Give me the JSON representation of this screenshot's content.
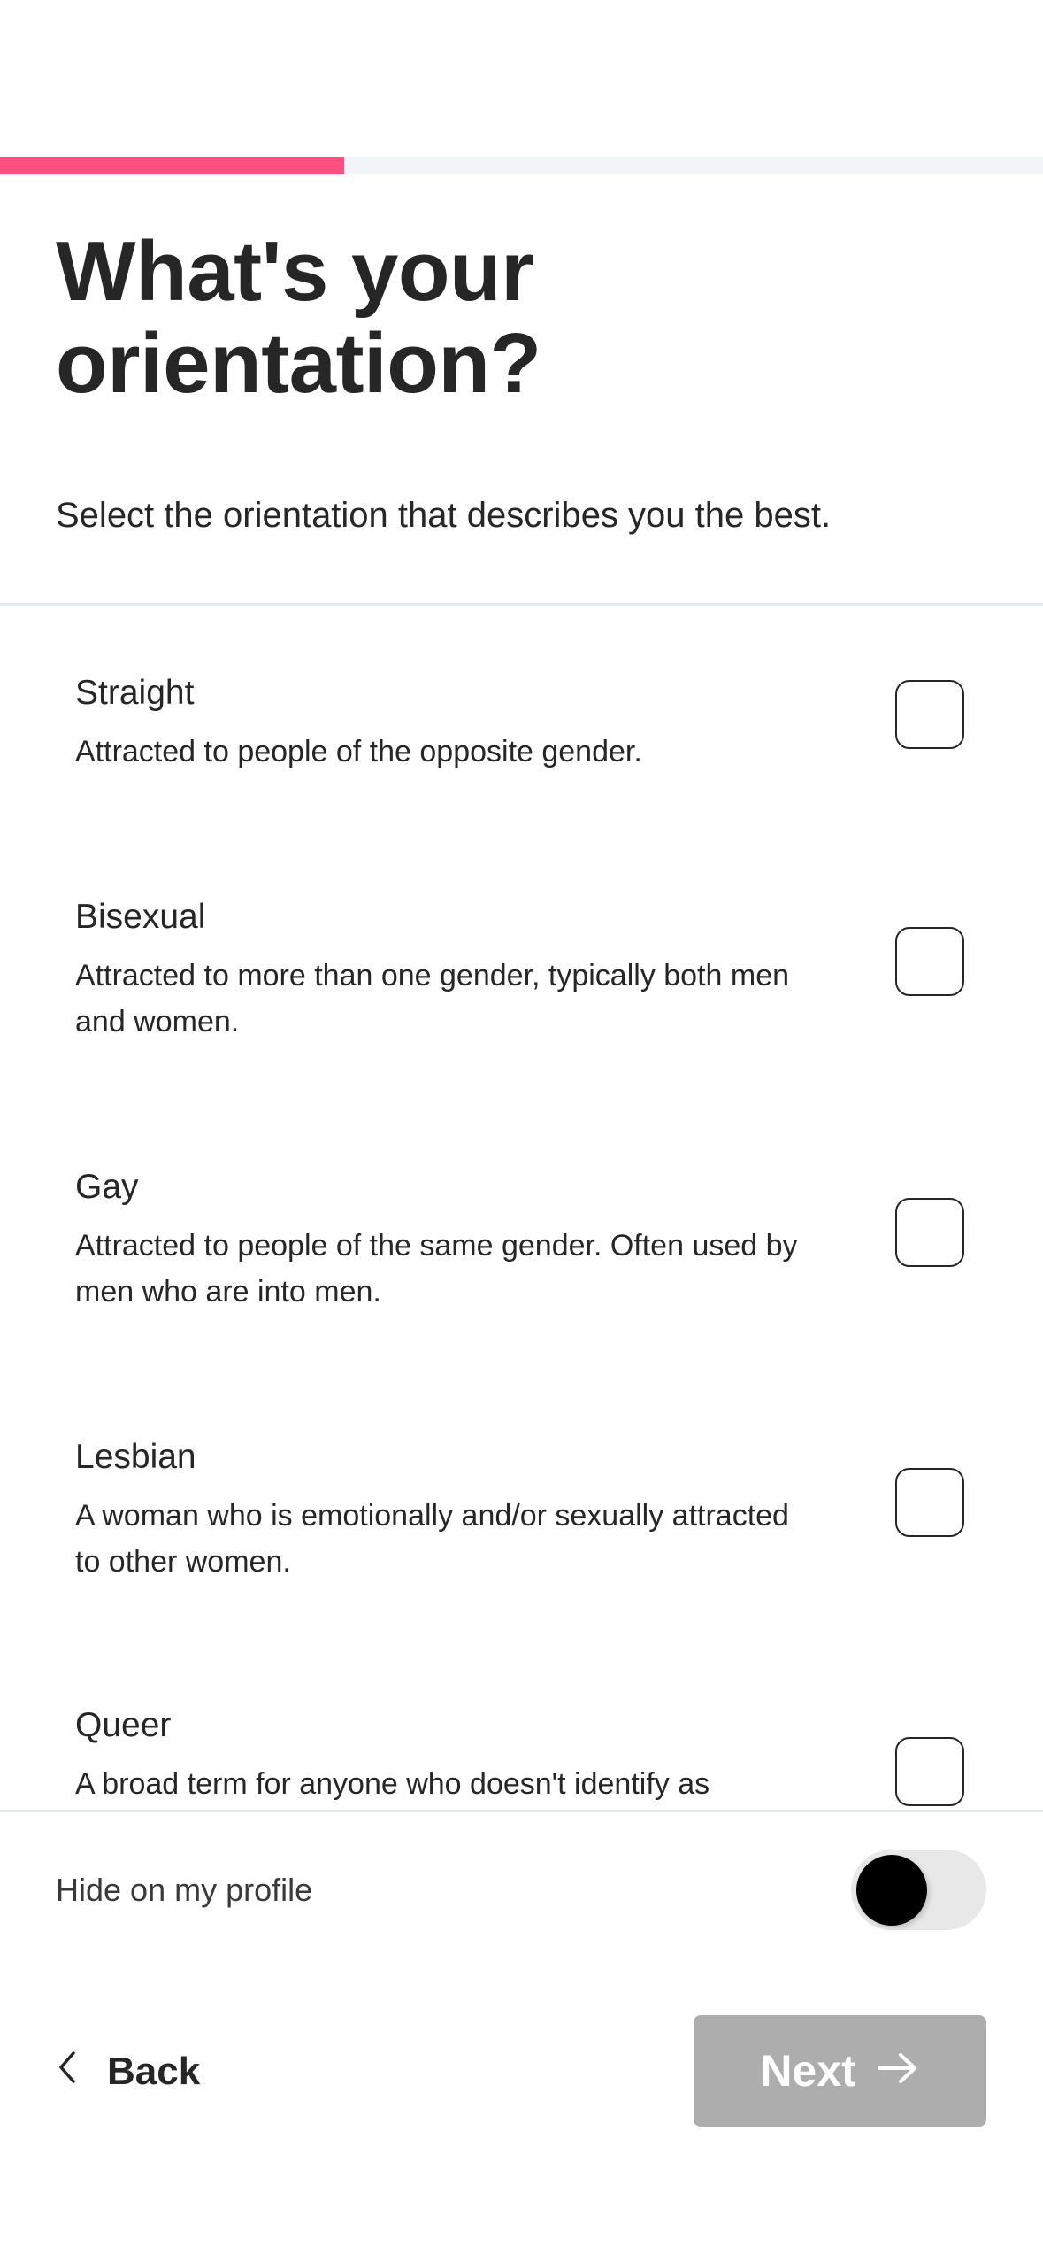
{
  "progress": {
    "percent": 33,
    "fill_color": "#FF4F80",
    "track_color": "#F1F4F8"
  },
  "header": {
    "title": "What's your orientation?",
    "subtitle": "Select the orientation that describes you the best."
  },
  "options": [
    {
      "name": "Straight",
      "description": "Attracted to people of the opposite gender.",
      "checked": false
    },
    {
      "name": "Bisexual",
      "description": "Attracted to more than one gender, typically both men and women.",
      "checked": false
    },
    {
      "name": "Gay",
      "description": "Attracted to people of the same gender. Often used by men who are into men.",
      "checked": false
    },
    {
      "name": "Lesbian",
      "description": "A woman who is emotionally and/or sexually attracted to other women.",
      "checked": false
    },
    {
      "name": "Queer",
      "description": "A broad term for anyone who doesn't identify as",
      "checked": false
    }
  ],
  "hide_on_profile": {
    "label": "Hide on my profile",
    "on": false
  },
  "footer": {
    "back_label": "Back",
    "back_icon": "chevron-left-icon",
    "next_label": "Next",
    "next_icon": "arrow-right-icon",
    "next_disabled_color": "#ADADAD"
  }
}
